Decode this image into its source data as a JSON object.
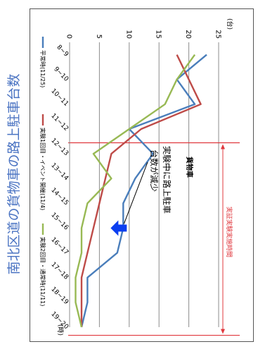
{
  "title": "南北区道の貨物車の路上駐車台数",
  "chart_data": {
    "type": "line",
    "subtitle": "貨物車",
    "ylabel": "(台)",
    "xlabel": "(時)",
    "ylim": [
      0,
      25
    ],
    "yticks": [
      0,
      5,
      10,
      15,
      20,
      25
    ],
    "grid": true,
    "legend_position": "bottom",
    "categories": [
      "8~9",
      "9~10",
      "10~11",
      "11~12",
      "12~13",
      "13~14",
      "14~15",
      "15~16",
      "16~17",
      "17~18",
      "18~19",
      "19~20"
    ],
    "series": [
      {
        "name": "平常時(11/25)",
        "color": "#4a7ebb",
        "values": [
          23,
          18,
          21,
          10,
          14,
          11,
          9,
          9,
          8,
          3,
          3,
          2
        ]
      },
      {
        "name": "実験1回目・イベント開催(11/4)",
        "color": "#be4b48",
        "values": [
          18,
          20,
          22,
          12,
          7,
          6,
          5,
          4,
          3,
          2,
          2,
          2
        ]
      },
      {
        "name": "実験2回目・通常時(11/11)",
        "color": "#98b954",
        "values": [
          21,
          18,
          16,
          10,
          4,
          7,
          3,
          2,
          2,
          1,
          1,
          2
        ]
      }
    ],
    "annotations": {
      "period_label": "実証実験実施時間",
      "period_start_index": 4,
      "period_end_index": 11,
      "note": "実験中に路上駐車台数が減少",
      "arrow_index": 7,
      "arrow_value": 7
    }
  }
}
